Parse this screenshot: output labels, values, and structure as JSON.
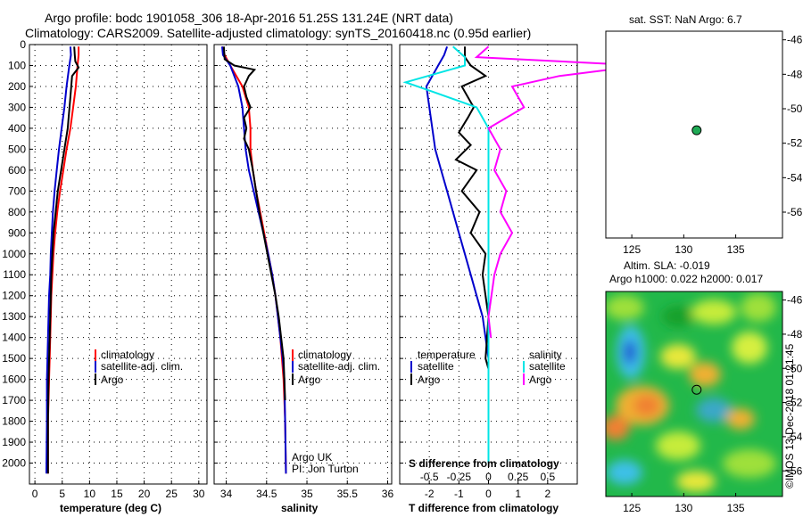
{
  "header": {
    "line1": "Argo profile: bodc 1901058_306 18-Apr-2016 51.25S 131.24E (NRT data)",
    "line2": "Climatology: CARS2009. Satellite-adjusted climatology: synTS_20160418.nc (0.95d earlier)"
  },
  "credit": "©IMOS 13-Dec-2018 01:21:45",
  "colors": {
    "climatology": "#ff0000",
    "satellite": "#0000cc",
    "argo": "#000000",
    "sat_salinity": "#00e5e5",
    "argo_salinity": "#ff00ff"
  },
  "chart_data": [
    {
      "type": "line",
      "xlabel": "temperature (deg C)",
      "ylabel": "",
      "xlim": [
        -1,
        31.5
      ],
      "ylim": [
        2100,
        0
      ],
      "xticks": [
        0,
        5,
        10,
        15,
        20,
        25,
        30
      ],
      "yticks": [
        0,
        100,
        200,
        300,
        400,
        500,
        600,
        700,
        800,
        900,
        1000,
        1100,
        1200,
        1300,
        1400,
        1500,
        1600,
        1700,
        1800,
        1900,
        2000
      ],
      "grid": true,
      "legend": {
        "position": "lower-right",
        "entries": [
          "climatology",
          "satellite-adj. clim.",
          "Argo"
        ]
      },
      "series": [
        {
          "name": "climatology",
          "color": "#ff0000",
          "x": [
            8.0,
            8.0,
            7.8,
            7.5,
            7.0,
            6.5,
            5.8,
            5.2,
            4.6,
            4.1,
            3.7,
            3.4,
            3.2,
            3.0,
            2.9,
            2.8,
            2.7,
            2.6,
            2.5,
            2.4,
            2.4
          ],
          "y": [
            10,
            50,
            100,
            200,
            300,
            400,
            500,
            600,
            700,
            800,
            900,
            1000,
            1100,
            1200,
            1300,
            1400,
            1500,
            1600,
            1700,
            1800,
            2050
          ]
        },
        {
          "name": "satellite-adj. clim.",
          "color": "#0000cc",
          "x": [
            6.5,
            6.6,
            6.3,
            5.8,
            5.4,
            4.9,
            4.4,
            4.0,
            3.6,
            3.3,
            3.1,
            2.9,
            2.8,
            2.6,
            2.5,
            2.4,
            2.3,
            2.2,
            2.2,
            2.1
          ],
          "y": [
            10,
            50,
            100,
            200,
            300,
            400,
            500,
            600,
            700,
            800,
            900,
            1000,
            1100,
            1200,
            1300,
            1400,
            1500,
            1600,
            1800,
            2050
          ]
        },
        {
          "name": "Argo",
          "color": "#000000",
          "x": [
            7.2,
            7.3,
            7.4,
            8.0,
            6.8,
            6.5,
            6.0,
            5.4,
            4.8,
            4.2,
            3.8,
            3.4,
            3.2,
            3.0,
            2.9,
            2.8,
            2.7,
            2.6,
            2.5,
            2.4,
            2.4
          ],
          "y": [
            10,
            50,
            80,
            110,
            150,
            250,
            400,
            500,
            600,
            700,
            800,
            900,
            1000,
            1100,
            1200,
            1300,
            1400,
            1500,
            1600,
            1800,
            2050
          ]
        }
      ]
    },
    {
      "type": "line",
      "xlabel": "salinity",
      "ylabel": "",
      "xlim": [
        33.85,
        36.05
      ],
      "ylim": [
        2100,
        0
      ],
      "xticks": [
        34,
        34.5,
        35,
        35.5,
        36
      ],
      "grid": true,
      "legend": {
        "position": "lower-right",
        "entries": [
          "climatology",
          "satellite-adj. clim.",
          "Argo"
        ]
      },
      "annotations": [
        "Argo UK",
        "PI: Jon Turton"
      ],
      "series": [
        {
          "name": "climatology",
          "color": "#ff0000",
          "x": [
            33.95,
            33.98,
            34.05,
            34.2,
            34.28,
            34.3,
            34.3,
            34.33,
            34.37,
            34.42,
            34.47,
            34.52,
            34.57,
            34.61,
            34.64,
            34.67,
            34.69,
            34.71,
            34.72,
            34.73,
            34.74
          ],
          "y": [
            10,
            50,
            100,
            200,
            300,
            400,
            500,
            600,
            700,
            800,
            900,
            1000,
            1100,
            1200,
            1300,
            1400,
            1500,
            1600,
            1700,
            1800,
            2050
          ]
        },
        {
          "name": "satellite-adj. clim.",
          "color": "#0000cc",
          "x": [
            33.95,
            33.96,
            34.05,
            34.15,
            34.2,
            34.22,
            34.24,
            34.28,
            34.34,
            34.4,
            34.46,
            34.52,
            34.57,
            34.61,
            34.64,
            34.67,
            34.7,
            34.72,
            34.73,
            34.74
          ],
          "y": [
            10,
            50,
            100,
            200,
            300,
            400,
            500,
            600,
            700,
            800,
            900,
            1000,
            1100,
            1200,
            1300,
            1400,
            1500,
            1600,
            1800,
            2050
          ]
        },
        {
          "name": "Argo",
          "color": "#000000",
          "x": [
            33.97,
            33.98,
            34.1,
            34.35,
            34.28,
            34.22,
            34.25,
            34.3,
            34.22,
            34.25,
            34.22,
            34.28,
            34.33,
            34.37,
            34.41,
            34.46,
            34.51,
            34.56,
            34.61,
            34.65,
            34.68,
            34.71,
            34.72,
            34.73
          ],
          "y": [
            10,
            70,
            100,
            120,
            150,
            200,
            250,
            300,
            350,
            400,
            450,
            500,
            600,
            700,
            800,
            900,
            1000,
            1100,
            1200,
            1300,
            1400,
            1500,
            1600,
            1700
          ]
        }
      ]
    },
    {
      "type": "line",
      "xlabel": "T difference from climatology",
      "secondary_xlabel": "S difference from climatology",
      "xlim": [
        -3,
        3
      ],
      "ylim": [
        2100,
        0
      ],
      "xticks": [
        -2,
        -1,
        0,
        1,
        2
      ],
      "secondary_xticks": [
        "-0.5",
        "-0.25",
        "0",
        "0.25",
        "0.5"
      ],
      "grid": true,
      "legend": {
        "position": "lower",
        "groups": [
          {
            "title": "temperature",
            "entries": [
              "satellite",
              "Argo"
            ]
          },
          {
            "title": "salinity",
            "entries": [
              "satellite",
              "Argo"
            ]
          }
        ]
      },
      "series": [
        {
          "name": "satellite",
          "group": "temperature",
          "color": "#0000cc",
          "x": [
            -1.4,
            -1.5,
            -1.7,
            -1.9,
            -2.1,
            -2.0,
            -1.9,
            -1.8,
            -1.6,
            -1.4,
            -1.2,
            -1.0,
            -0.8,
            -0.6,
            -0.4,
            -0.2,
            -0.1,
            0,
            0,
            0
          ],
          "y": [
            10,
            50,
            100,
            150,
            200,
            300,
            400,
            500,
            600,
            700,
            800,
            900,
            1000,
            1100,
            1200,
            1300,
            1400,
            1500,
            1700,
            2000
          ]
        },
        {
          "name": "Argo",
          "group": "temperature",
          "color": "#000000",
          "x": [
            -0.8,
            -0.8,
            -0.6,
            -0.1,
            -0.9,
            -0.5,
            -0.7,
            -1.0,
            -0.6,
            -1.1,
            -0.4,
            -0.9,
            -0.3,
            -0.6,
            -0.1,
            -0.2,
            0,
            -0.1,
            0,
            0
          ],
          "y": [
            10,
            60,
            100,
            150,
            200,
            300,
            350,
            420,
            480,
            550,
            600,
            700,
            800,
            900,
            1000,
            1100,
            1300,
            1500,
            1550,
            1650
          ]
        },
        {
          "name": "satellite",
          "group": "salinity",
          "color": "#00e5e5",
          "x": [
            -0.3,
            -0.2,
            -0.2,
            -0.7,
            -0.5,
            -0.1,
            0,
            0,
            0,
            0,
            0,
            0
          ],
          "y": [
            10,
            60,
            100,
            180,
            220,
            300,
            400,
            600,
            800,
            1000,
            1500,
            2000
          ]
        },
        {
          "name": "Argo",
          "group": "salinity",
          "color": "#ff00ff",
          "x": [
            0,
            -0.1,
            1.3,
            0.6,
            0.2,
            0.3,
            0,
            0.1,
            0.05,
            0.15,
            0.1,
            0.2,
            0.1,
            0.05,
            0,
            0.02
          ],
          "y": [
            10,
            60,
            100,
            150,
            200,
            300,
            400,
            500,
            600,
            700,
            800,
            900,
            1000,
            1100,
            1300,
            1400
          ]
        }
      ]
    },
    {
      "type": "scatter",
      "title": "sat. SST: NaN Argo: 6.7",
      "xlim": [
        122.5,
        139.5
      ],
      "ylim": [
        -57.5,
        -45.5
      ],
      "xticks": [
        125,
        130,
        135
      ],
      "yticks": [
        -46,
        -48,
        -50,
        -52,
        -54,
        -56
      ],
      "points": [
        {
          "x": 131.24,
          "y": -51.25,
          "color": "#1faa55"
        }
      ]
    },
    {
      "type": "heatmap",
      "title": "Altim. SLA: -0.019",
      "subtitle": "Argo h1000: 0.022 h2000: 0.017",
      "xlim": [
        122.5,
        139.5
      ],
      "ylim": [
        -57.5,
        -45.5
      ],
      "xticks": [
        125,
        130,
        135
      ],
      "yticks": [
        -46,
        -48,
        -50,
        -52,
        -54,
        -56
      ],
      "marker": {
        "x": 131.24,
        "y": -51.25
      }
    }
  ]
}
